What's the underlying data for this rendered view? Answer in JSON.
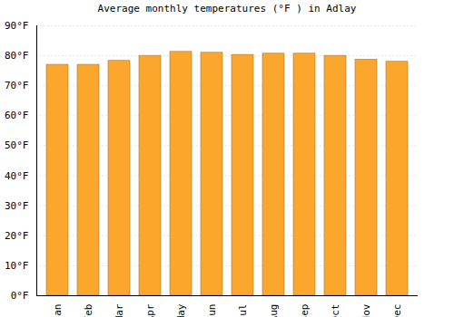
{
  "chart_data": {
    "type": "bar",
    "title": "Average monthly temperatures (°F ) in Adlay",
    "categories": [
      "Jan",
      "Feb",
      "Mar",
      "Apr",
      "May",
      "Jun",
      "Jul",
      "Aug",
      "Sep",
      "Oct",
      "Nov",
      "Dec"
    ],
    "values": [
      77,
      77,
      78.3,
      80,
      81.3,
      81,
      80.3,
      80.7,
      80.7,
      80,
      78.7,
      78
    ],
    "color": "#fba72e",
    "ylim": [
      0,
      90
    ],
    "yticks": [
      {
        "value": 0,
        "label": "0°F"
      },
      {
        "value": 10,
        "label": "10°F"
      },
      {
        "value": 20,
        "label": "20°F"
      },
      {
        "value": 30,
        "label": "30°F"
      },
      {
        "value": 40,
        "label": "40°F"
      },
      {
        "value": 50,
        "label": "50°F"
      },
      {
        "value": 60,
        "label": "60°F"
      },
      {
        "value": 70,
        "label": "70°F"
      },
      {
        "value": 80,
        "label": "80°F"
      },
      {
        "value": 90,
        "label": "90°F"
      }
    ],
    "grid": true
  }
}
